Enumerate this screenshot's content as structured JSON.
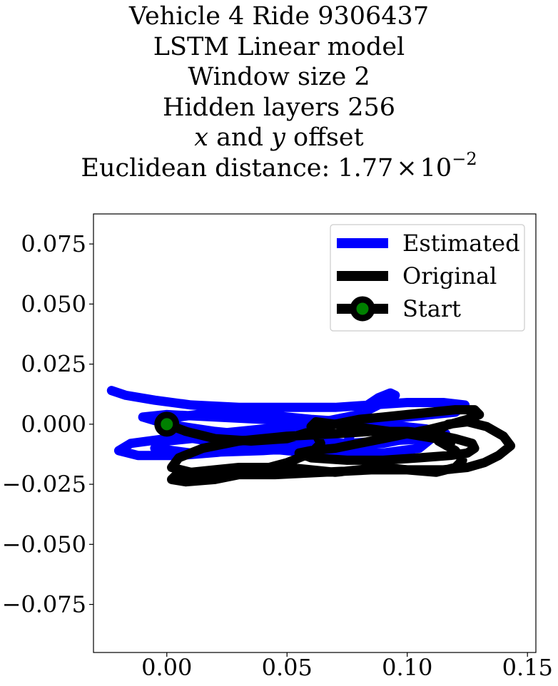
{
  "chart_data": {
    "type": "line",
    "title_lines": [
      "Vehicle 4 Ride 9306437",
      "LSTM Linear model",
      "Window size 2",
      "Hidden layers 256"
    ],
    "offset_line": {
      "x_var": "x",
      "conjunction": " and ",
      "y_var": "y",
      "suffix": " offset"
    },
    "distance_line": {
      "label": "Euclidean distance: ",
      "mantissa": "1.77",
      "times": "×",
      "base": "10",
      "exponent": "−2"
    },
    "xlim": [
      -0.0305,
      0.1535
    ],
    "ylim": [
      -0.095,
      0.0875
    ],
    "xticks": [
      0.0,
      0.05,
      0.1,
      0.15
    ],
    "xtick_labels": [
      "0.00",
      "0.05",
      "0.10",
      "0.15"
    ],
    "yticks": [
      0.075,
      0.05,
      0.025,
      0.0,
      -0.025,
      -0.05,
      -0.075
    ],
    "ytick_labels": [
      "0.075",
      "0.050",
      "0.025",
      "0.000",
      "−0.025",
      "−0.050",
      "−0.075"
    ],
    "grid": false,
    "legend_position": "upper right",
    "legend": [
      "Estimated",
      "Original",
      "Start"
    ],
    "series": [
      {
        "name": "Estimated",
        "color": "#0000ff",
        "x": [
          -0.023,
          -0.017,
          -0.005,
          0.01,
          0.03,
          0.05,
          0.07,
          0.085,
          0.1,
          0.115,
          0.124,
          0.12,
          0.1,
          0.08,
          0.06,
          0.04,
          0.02,
          0.0,
          -0.015,
          -0.02,
          -0.012,
          0.005,
          0.03,
          0.06,
          0.09,
          0.11,
          0.116,
          0.1,
          0.08,
          0.06,
          0.04,
          0.02,
          0.0,
          -0.01,
          0.0,
          0.02,
          0.05,
          0.075,
          0.078,
          0.082,
          0.088,
          0.093,
          0.095,
          0.09,
          0.08,
          0.06,
          0.04,
          0.02,
          0.0,
          -0.005,
          0.01,
          0.04,
          0.07,
          0.09,
          0.1,
          0.11,
          0.108,
          0.09,
          0.06,
          0.04,
          0.02,
          0.005,
          0.0,
          0.005,
          0.03,
          0.06,
          0.09,
          0.105,
          0.11
        ],
        "y": [
          0.014,
          0.012,
          0.01,
          0.008,
          0.007,
          0.007,
          0.007,
          0.008,
          0.009,
          0.009,
          0.008,
          0.005,
          0.003,
          0.002,
          0.0,
          -0.002,
          -0.004,
          -0.006,
          -0.008,
          -0.011,
          -0.013,
          -0.013,
          -0.011,
          -0.009,
          -0.007,
          -0.006,
          -0.004,
          -0.003,
          -0.001,
          0.001,
          0.002,
          0.003,
          0.004,
          0.003,
          0.0,
          -0.003,
          -0.006,
          -0.008,
          0.0,
          0.007,
          0.011,
          0.013,
          0.012,
          0.009,
          0.004,
          0.0,
          -0.003,
          -0.005,
          -0.007,
          -0.01,
          -0.012,
          -0.011,
          -0.009,
          -0.008,
          -0.006,
          -0.004,
          -0.002,
          0.0,
          0.002,
          0.004,
          0.005,
          0.003,
          -0.001,
          -0.005,
          -0.009,
          -0.012,
          -0.012,
          -0.01,
          -0.006
        ]
      },
      {
        "name": "Original",
        "color": "#000000",
        "x": [
          0.0,
          0.008,
          0.02,
          0.035,
          0.05,
          0.06,
          0.07,
          0.08,
          0.09,
          0.1,
          0.11,
          0.12,
          0.128,
          0.13,
          0.125,
          0.118,
          0.11,
          0.1,
          0.09,
          0.08,
          0.07,
          0.06,
          0.055,
          0.06,
          0.075,
          0.09,
          0.105,
          0.118,
          0.125,
          0.128,
          0.127,
          0.12,
          0.11,
          0.1,
          0.085,
          0.07,
          0.05,
          0.03,
          0.015,
          0.005,
          0.002,
          0.01,
          0.025,
          0.045,
          0.065,
          0.085,
          0.1,
          0.115,
          0.125,
          0.132,
          0.138,
          0.143,
          0.14,
          0.133,
          0.125,
          0.117,
          0.112,
          0.113,
          0.12,
          0.123,
          0.12,
          0.112,
          0.1,
          0.09,
          0.08,
          0.07,
          0.06,
          0.05,
          0.04,
          0.03,
          0.02,
          0.01,
          0.004,
          0.002,
          0.008,
          0.02,
          0.035,
          0.05,
          0.06,
          0.064,
          0.062,
          0.06,
          0.062,
          0.07,
          0.085,
          0.1,
          0.112,
          0.118
        ],
        "y": [
          0.0,
          -0.003,
          -0.006,
          -0.007,
          -0.006,
          -0.003,
          0.0,
          0.002,
          0.003,
          0.004,
          0.005,
          0.006,
          0.006,
          0.004,
          0.002,
          0.0,
          -0.002,
          -0.004,
          -0.006,
          -0.008,
          -0.01,
          -0.011,
          -0.012,
          -0.014,
          -0.015,
          -0.015,
          -0.014,
          -0.013,
          -0.012,
          -0.01,
          -0.008,
          -0.006,
          -0.004,
          -0.003,
          -0.003,
          -0.004,
          -0.005,
          -0.007,
          -0.01,
          -0.014,
          -0.018,
          -0.02,
          -0.021,
          -0.021,
          -0.02,
          -0.019,
          -0.019,
          -0.019,
          -0.018,
          -0.016,
          -0.013,
          -0.009,
          -0.005,
          -0.001,
          0.001,
          0.0,
          -0.003,
          -0.007,
          -0.011,
          -0.015,
          -0.018,
          -0.02,
          -0.019,
          -0.018,
          -0.019,
          -0.02,
          -0.019,
          -0.018,
          -0.018,
          -0.018,
          -0.019,
          -0.02,
          -0.021,
          -0.023,
          -0.024,
          -0.023,
          -0.02,
          -0.016,
          -0.012,
          -0.008,
          -0.004,
          -0.001,
          0.001,
          0.0,
          -0.002,
          -0.004,
          -0.006,
          -0.008
        ]
      }
    ],
    "start_point": {
      "name": "Start",
      "x": 0.0,
      "y": 0.0,
      "edge_color": "#000000",
      "face_color": "#008000"
    }
  }
}
